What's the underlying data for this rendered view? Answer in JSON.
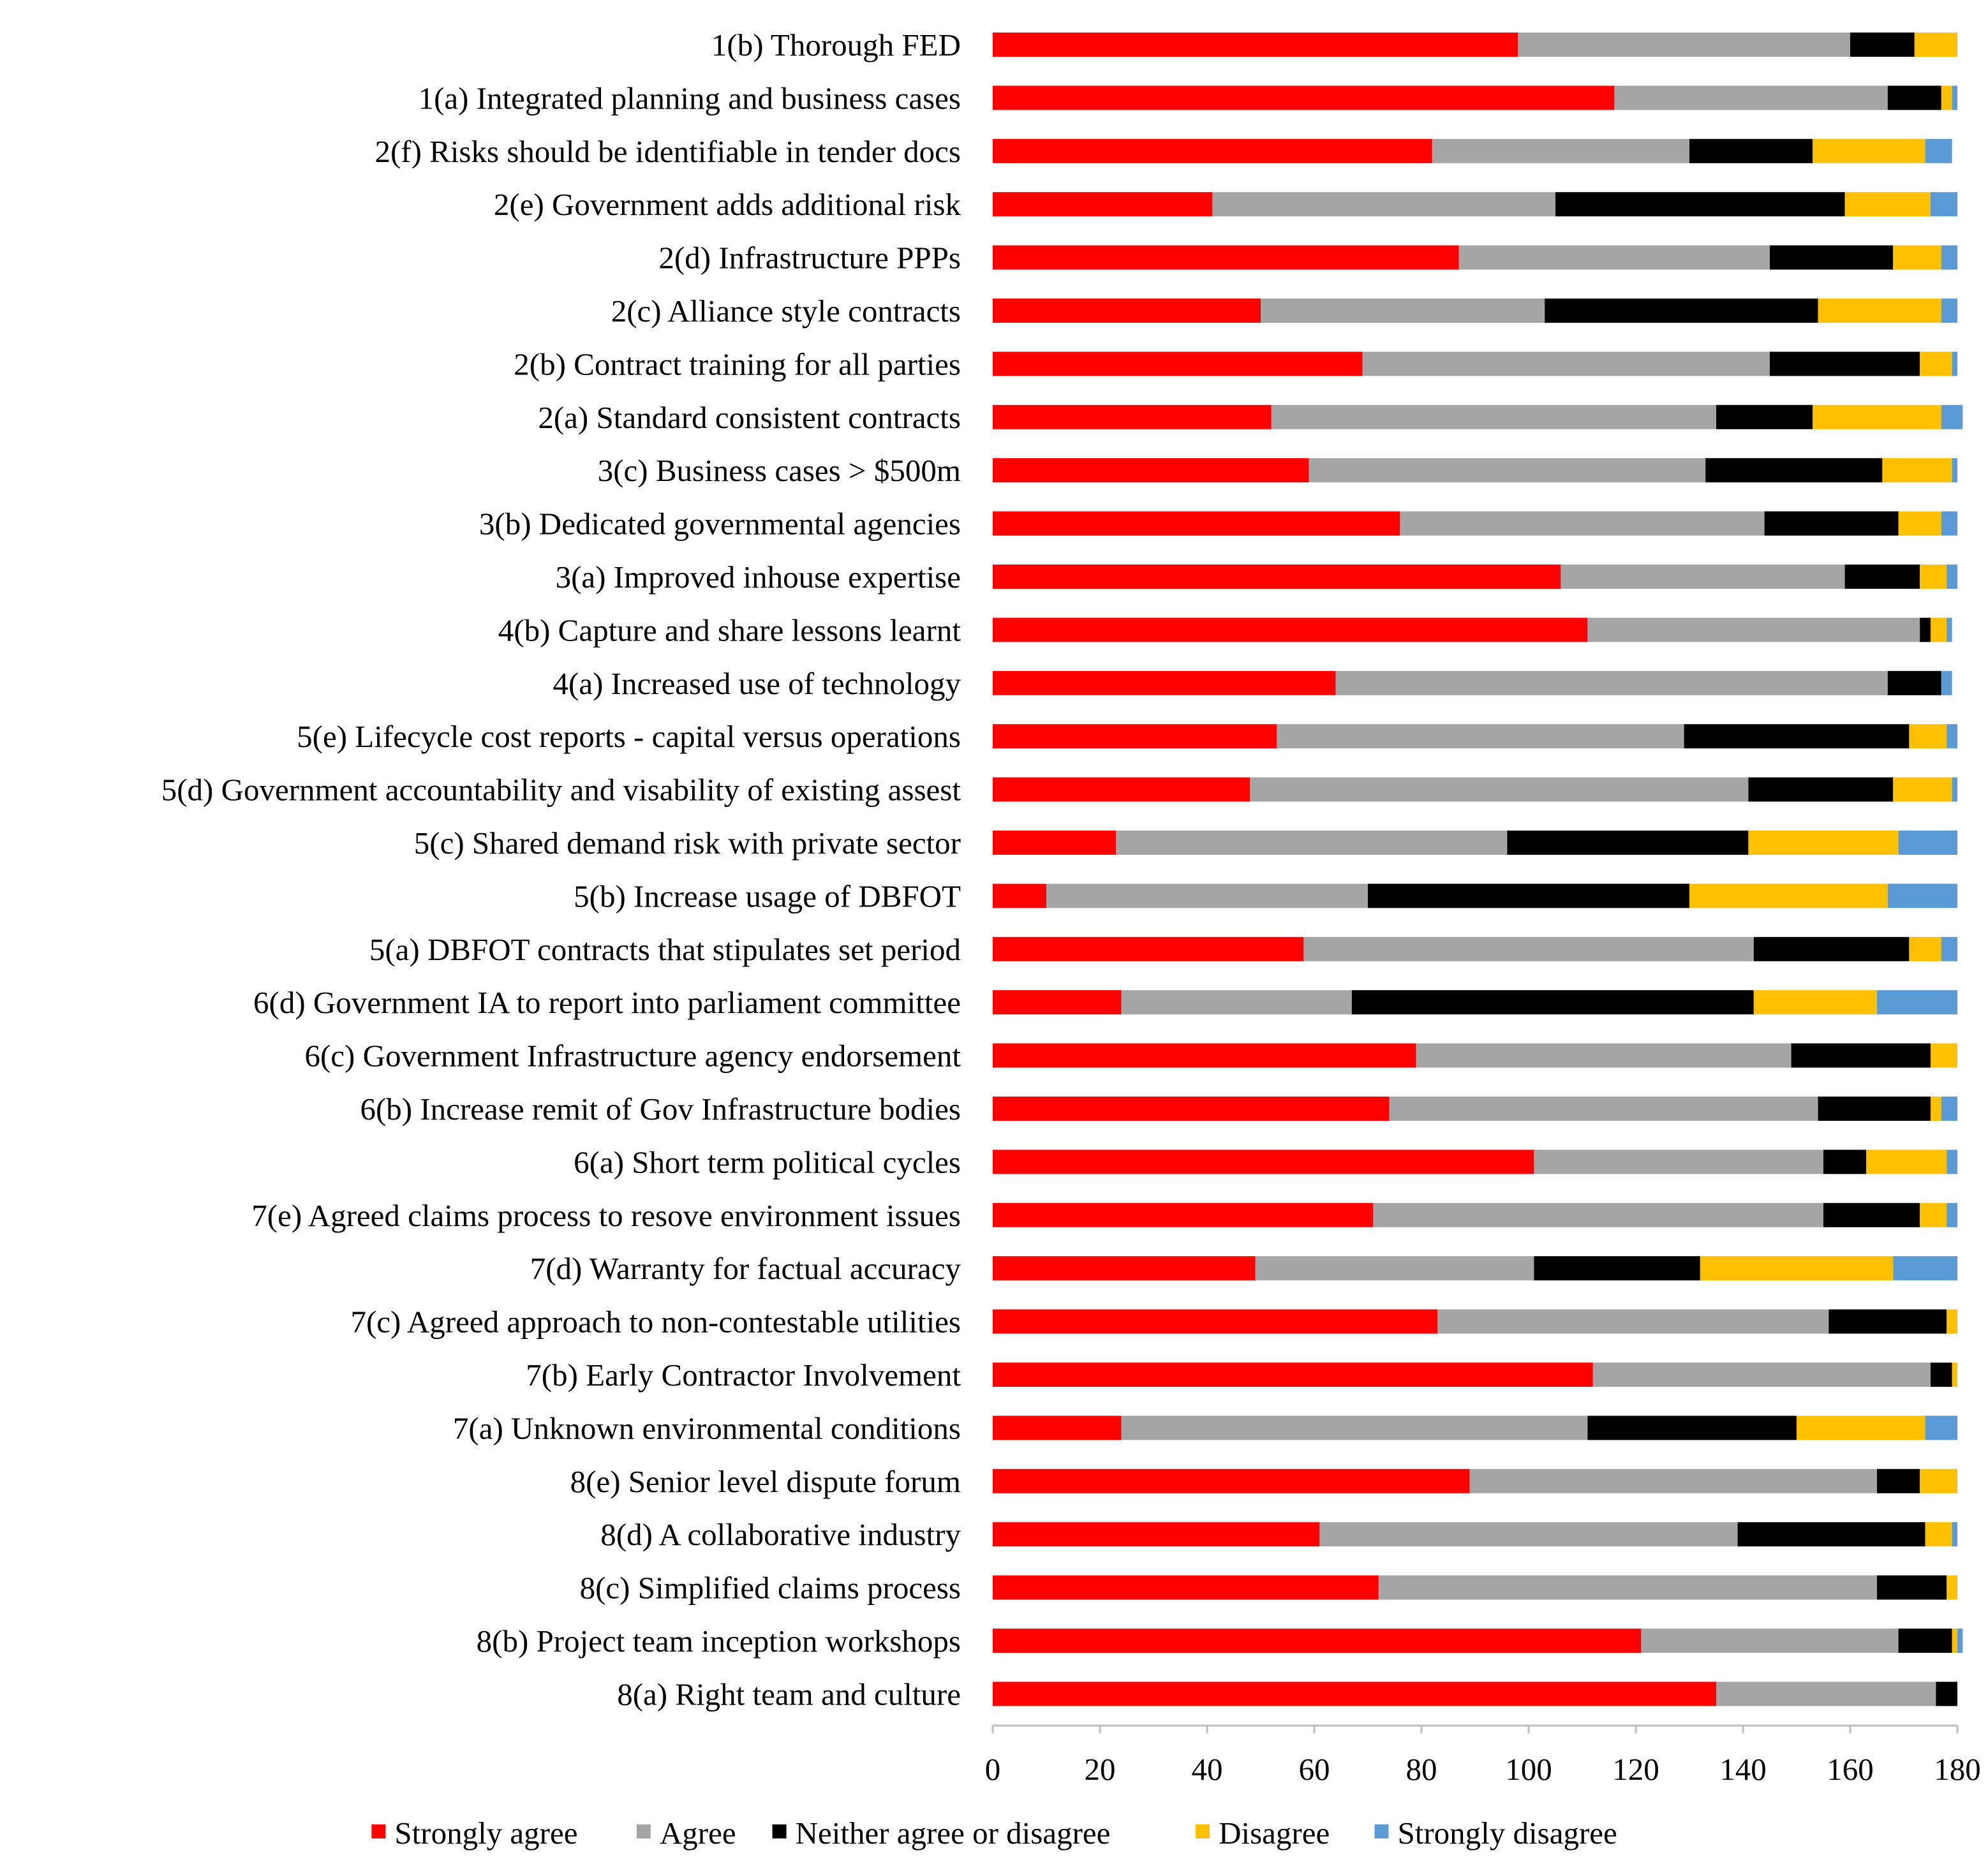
{
  "chart_data": {
    "type": "bar",
    "orientation": "horizontal",
    "stacked": true,
    "title": "",
    "xlabel": "",
    "ylabel": "",
    "xlim": [
      0,
      180
    ],
    "xticks": [
      0,
      20,
      40,
      60,
      80,
      100,
      120,
      140,
      160,
      180
    ],
    "grid": false,
    "legend_position": "bottom",
    "categories": [
      "1(b) Thorough FED",
      "1(a) Integrated planning and business cases",
      "2(f) Risks should be identifiable in tender docs",
      "2(e) Government adds additional risk",
      "2(d) Infrastructure PPPs",
      "2(c) Alliance style contracts",
      "2(b) Contract training for all parties",
      "2(a) Standard consistent contracts",
      "3(c) Business cases > $500m",
      "3(b) Dedicated governmental agencies",
      "3(a) Improved inhouse expertise",
      "4(b) Capture and share lessons learnt",
      "4(a) Increased use of technology",
      "5(e) Lifecycle cost reports - capital versus operations",
      "5(d) Government accountability and visability of existing assest",
      "5(c) Shared demand risk with private sector",
      "5(b) Increase usage of DBFOT",
      "5(a) DBFOT contracts that stipulates set period",
      "6(d) Government IA to report into parliament committee",
      "6(c) Government Infrastructure agency endorsement",
      "6(b) Increase remit of Gov Infrastructure bodies",
      "6(a) Short term political cycles",
      "7(e) Agreed claims process to resove environment issues",
      "7(d) Warranty for factual accuracy",
      "7(c) Agreed approach to non-contestable utilities",
      "7(b) Early Contractor Involvement",
      "7(a) Unknown environmental conditions",
      "8(e) Senior level dispute forum",
      "8(d) A collaborative industry",
      "8(c) Simplified claims process",
      "8(b) Project team inception workshops",
      "8(a) Right team and culture"
    ],
    "series": [
      {
        "name": "Strongly agree",
        "color": "#ff0000",
        "values": [
          98,
          116,
          82,
          41,
          87,
          50,
          69,
          52,
          59,
          76,
          106,
          111,
          64,
          53,
          48,
          23,
          10,
          58,
          24,
          79,
          74,
          101,
          71,
          49,
          83,
          112,
          24,
          89,
          61,
          72,
          121,
          135
        ]
      },
      {
        "name": "Agree",
        "color": "#a5a5a5",
        "values": [
          62,
          51,
          48,
          64,
          58,
          53,
          76,
          83,
          74,
          68,
          53,
          62,
          103,
          76,
          93,
          73,
          60,
          84,
          43,
          70,
          80,
          54,
          84,
          52,
          73,
          63,
          87,
          76,
          78,
          93,
          48,
          41
        ]
      },
      {
        "name": "Neither agree or disagree",
        "color": "#000000",
        "values": [
          12,
          10,
          23,
          54,
          23,
          51,
          28,
          18,
          33,
          25,
          14,
          2,
          10,
          42,
          27,
          45,
          60,
          29,
          75,
          26,
          21,
          8,
          18,
          31,
          22,
          4,
          39,
          8,
          35,
          13,
          10,
          4
        ]
      },
      {
        "name": "Disagree",
        "color": "#ffc000",
        "values": [
          8,
          2,
          21,
          16,
          9,
          23,
          6,
          24,
          13,
          8,
          5,
          3,
          0,
          7,
          11,
          28,
          37,
          6,
          23,
          5,
          2,
          15,
          5,
          36,
          2,
          1,
          24,
          7,
          5,
          2,
          1,
          0
        ]
      },
      {
        "name": "Strongly disagree",
        "color": "#5b9bd5",
        "values": [
          0,
          1,
          5,
          5,
          3,
          3,
          1,
          4,
          1,
          3,
          2,
          1,
          2,
          2,
          1,
          11,
          13,
          3,
          15,
          0,
          3,
          2,
          2,
          12,
          0,
          0,
          6,
          0,
          1,
          0,
          1,
          0
        ]
      }
    ]
  }
}
